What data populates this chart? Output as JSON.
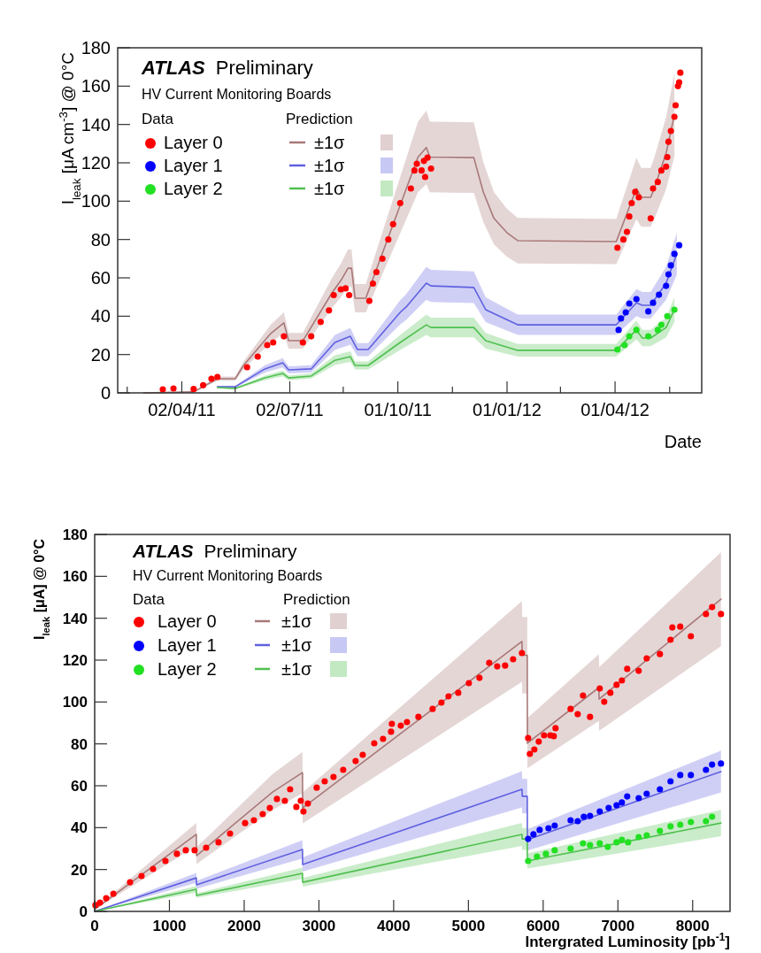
{
  "chart_data": [
    {
      "type": "line",
      "title": "ATLAS",
      "subtitle": "Preliminary",
      "annotations": [
        "HV Current Monitoring Boards",
        "Data",
        "Prediction"
      ],
      "xlabel": "Date",
      "ylabel": "I$_{leak}$ [μA cm$^{-3}$] @ 0°C",
      "legend": "top left",
      "xlim": [
        "2011-02-07",
        "2012-06-13"
      ],
      "xticks": [
        {
          "value": "2011-02-15",
          "label": null
        },
        {
          "value": "2011-04-02",
          "label": "02/04/11"
        },
        {
          "value": "2011-05-17",
          "label": null
        },
        {
          "value": "2011-07-02",
          "label": "02/07/11"
        },
        {
          "value": "2011-08-16",
          "label": null
        },
        {
          "value": "2011-10-01",
          "label": "01/10/11"
        },
        {
          "value": "2011-11-16",
          "label": null
        },
        {
          "value": "2012-01-01",
          "label": "01/01/12"
        },
        {
          "value": "2012-02-15",
          "label": null
        },
        {
          "value": "2012-04-01",
          "label": "01/04/12"
        },
        {
          "value": "2012-05-17",
          "label": null
        }
      ],
      "ylim": [
        0,
        180
      ],
      "yticks": [
        0,
        20,
        40,
        60,
        80,
        100,
        120,
        140,
        160,
        180
      ],
      "series": [
        {
          "name": "Layer 0",
          "type": "scatter",
          "marker": "circle",
          "color": "#ff0000",
          "x": [
            "2011-03-17",
            "2011-03-26",
            "2011-04-12",
            "2011-04-20",
            "2011-04-27",
            "2011-05-02",
            "2011-05-27",
            "2011-06-05",
            "2011-06-13",
            "2011-06-18",
            "2011-06-27",
            "2011-07-13",
            "2011-07-20",
            "2011-07-28",
            "2011-08-04",
            "2011-08-08",
            "2011-08-14",
            "2011-08-18",
            "2011-08-21",
            "2011-09-07",
            "2011-09-10",
            "2011-09-13",
            "2011-09-18",
            "2011-09-23",
            "2011-09-27",
            "2011-10-03",
            "2011-10-12",
            "2011-10-15",
            "2011-10-17",
            "2011-10-21",
            "2011-10-23",
            "2011-10-24",
            "2011-10-26",
            "2011-10-29",
            "2012-04-03",
            "2012-04-08",
            "2012-04-11",
            "2012-04-13",
            "2012-04-15",
            "2012-04-18",
            "2012-04-21",
            "2012-05-01",
            "2012-05-03",
            "2012-05-07",
            "2012-05-10",
            "2012-05-14",
            "2012-05-15",
            "2012-05-16",
            "2012-05-18",
            "2012-05-21",
            "2012-05-22",
            "2012-05-24",
            "2012-05-25",
            "2012-05-26"
          ],
          "values": [
            1.8,
            2.3,
            2,
            4,
            7.4,
            8.3,
            13.4,
            18.9,
            24.9,
            26.3,
            29.5,
            26.3,
            29.5,
            37,
            43,
            51,
            54,
            54.5,
            51,
            48,
            57,
            63,
            70,
            80,
            88,
            99,
            106.6,
            116,
            119.5,
            116,
            121,
            112.6,
            122.7,
            117,
            75.7,
            80,
            84,
            92,
            99,
            104.8,
            102,
            91,
            106.6,
            110,
            116,
            118,
            123,
            131,
            136.6,
            144,
            150,
            160,
            162,
            167
          ]
        },
        {
          "name": "±1σ",
          "color": "#a87878",
          "x": [
            "2011-03-01",
            "2011-04-12",
            "2011-05-02",
            "2011-05-17",
            "2011-05-24",
            "2011-06-16",
            "2011-06-27",
            "2011-07-01",
            "2011-07-13",
            "2011-08-07",
            "2011-08-14",
            "2011-08-20",
            "2011-08-23",
            "2011-08-26",
            "2011-09-04",
            "2011-10-18",
            "2011-10-25",
            "2011-10-28",
            "2011-12-04",
            "2011-12-12",
            "2011-12-21",
            "2012-01-01",
            "2012-01-10",
            "2012-04-02",
            "2012-04-19",
            "2012-04-23",
            "2012-05-01",
            "2012-05-04",
            "2012-05-14",
            "2012-05-21"
          ],
          "values": [
            0,
            0.5,
            7.4,
            7.4,
            14.3,
            31,
            36.5,
            27.2,
            27.2,
            52.6,
            58.6,
            65,
            65,
            49.4,
            49.4,
            123,
            128,
            123,
            122.7,
            104.8,
            91,
            83.5,
            79.4,
            78.9,
            106.6,
            102,
            102,
            106.6,
            125,
            145
          ],
          "lower": [
            0,
            0.4,
            6.3,
            6.3,
            12.2,
            26.4,
            31,
            23.1,
            23.1,
            44.7,
            49.8,
            55.3,
            55.3,
            42,
            42,
            104.6,
            108.8,
            104.6,
            104.3,
            89.1,
            77.4,
            71,
            67.5,
            67.1,
            90.6,
            86.7,
            86.7,
            90.6,
            106.3,
            123.3
          ],
          "upper": [
            0,
            0.6,
            8.5,
            8.5,
            16.4,
            35.7,
            42,
            31.3,
            31.3,
            60.5,
            67.4,
            74.8,
            74.8,
            56.8,
            56.8,
            141.5,
            147.2,
            141.5,
            141.1,
            120.5,
            104.7,
            96,
            91.3,
            90.7,
            122.6,
            117.3,
            117.3,
            122.6,
            143.8,
            166.8
          ]
        },
        {
          "name": "Layer 1",
          "type": "scatter",
          "marker": "circle",
          "color": "#0000ff",
          "x": [
            "2012-04-04",
            "2012-04-06",
            "2012-04-10",
            "2012-04-13",
            "2012-04-19",
            "2012-04-29",
            "2012-05-03",
            "2012-05-08",
            "2012-05-14",
            "2012-05-16",
            "2012-05-18",
            "2012-05-21",
            "2012-05-25"
          ],
          "values": [
            32.8,
            38.8,
            42,
            46.6,
            48.9,
            42.5,
            47,
            51.2,
            55.8,
            61.8,
            66.5,
            72.5,
            77
          ]
        },
        {
          "name": "±1σ",
          "color": "#6060e0",
          "x": [
            "2011-05-02",
            "2011-05-17",
            "2011-06-11",
            "2011-06-26",
            "2011-07-01",
            "2011-07-20",
            "2011-08-09",
            "2011-08-22",
            "2011-08-28",
            "2011-09-06",
            "2011-10-03",
            "2011-10-08",
            "2011-10-25",
            "2011-10-29",
            "2011-12-04",
            "2011-12-14",
            "2012-01-10",
            "2012-04-02",
            "2012-04-19",
            "2012-04-24",
            "2012-05-01",
            "2012-05-14",
            "2012-05-23"
          ],
          "values": [
            3.2,
            3.2,
            12.5,
            15.7,
            12,
            12.5,
            26.3,
            29.5,
            22.6,
            22.6,
            42,
            44.8,
            57.2,
            55.8,
            55,
            43.4,
            35.5,
            35.5,
            47,
            45.7,
            45.7,
            57.2,
            72.5
          ],
          "lower": [
            2.7,
            2.7,
            10.6,
            13.3,
            10.2,
            10.6,
            22.4,
            25.1,
            19.2,
            19.2,
            35.7,
            38.1,
            48.6,
            47.4,
            46.8,
            36.9,
            30.2,
            30.2,
            40,
            38.8,
            38.8,
            48.6,
            61.6
          ],
          "upper": [
            3.7,
            3.7,
            14.4,
            18.1,
            13.8,
            14.4,
            30.2,
            33.9,
            26,
            26,
            48.3,
            51.5,
            65.8,
            64.2,
            63.3,
            49.9,
            40.8,
            40.8,
            54.1,
            52.6,
            52.6,
            65.8,
            83.4
          ]
        },
        {
          "name": "Layer 2",
          "type": "scatter",
          "marker": "circle",
          "color": "#22e022",
          "x": [
            "2012-04-03",
            "2012-04-09",
            "2012-04-13",
            "2012-04-19",
            "2012-04-29",
            "2012-05-07",
            "2012-05-10",
            "2012-05-15",
            "2012-05-21"
          ],
          "values": [
            22.6,
            24.9,
            29.5,
            32.8,
            29.5,
            32.8,
            35.5,
            40,
            43.4
          ]
        },
        {
          "name": "±1σ",
          "color": "#50c050",
          "x": [
            "2011-05-02",
            "2011-05-17",
            "2011-06-11",
            "2011-06-26",
            "2011-07-01",
            "2011-07-20",
            "2011-08-09",
            "2011-08-22",
            "2011-08-26",
            "2011-09-06",
            "2011-10-03",
            "2011-10-25",
            "2011-10-29",
            "2011-12-04",
            "2011-12-14",
            "2012-01-10",
            "2012-04-02",
            "2012-04-19",
            "2012-04-24",
            "2012-05-01",
            "2012-05-14",
            "2012-05-21"
          ],
          "values": [
            2.8,
            2.3,
            7.8,
            10.2,
            7.8,
            8.8,
            17,
            18.9,
            14.3,
            14.3,
            26.3,
            35.5,
            34.1,
            34.1,
            27.2,
            22.2,
            22.2,
            32.8,
            28.6,
            28.6,
            34.1,
            43.4
          ],
          "lower": [
            2.4,
            2,
            6.6,
            8.7,
            6.6,
            7.5,
            14.5,
            16.1,
            12.2,
            12.2,
            22.4,
            30.2,
            29,
            29,
            23.1,
            18.9,
            18.9,
            27.9,
            24.3,
            24.3,
            29,
            36.9
          ],
          "upper": [
            3.2,
            2.6,
            9,
            11.7,
            9,
            10.1,
            19.6,
            21.7,
            16.4,
            16.4,
            30.2,
            40.8,
            39.2,
            39.2,
            31.3,
            25.5,
            25.5,
            37.7,
            32.9,
            32.9,
            39.2,
            49.9
          ]
        }
      ]
    },
    {
      "type": "line",
      "title": "ATLAS",
      "subtitle": "Preliminary",
      "annotations": [
        "HV Current Monitoring Boards",
        "Data",
        "Prediction"
      ],
      "xlabel": "Intergrated Luminosity [pb$^{-1}$]",
      "ylabel": "I$_{leak}$ [μA] @ 0°C",
      "legend": "top left",
      "xlim": [
        0,
        8500
      ],
      "xticks": [
        0,
        1000,
        2000,
        3000,
        4000,
        5000,
        6000,
        7000,
        8000
      ],
      "ylim": [
        0,
        180
      ],
      "yticks": [
        0,
        20,
        40,
        60,
        80,
        100,
        120,
        140,
        160,
        180
      ],
      "series": [
        {
          "name": "Layer 0",
          "type": "scatter",
          "marker": "circle",
          "color": "#ff0000",
          "x": [
            10,
            71,
            154,
            250,
            473,
            627,
            781,
            947,
            1100,
            1219,
            1337,
            1491,
            1657,
            1811,
            2012,
            2130,
            2248,
            2343,
            2438,
            2544,
            2615,
            2698,
            2757,
            2793,
            2852,
            2970,
            3077,
            3195,
            3325,
            3491,
            3586,
            3740,
            3858,
            3965,
            3976,
            4095,
            4178,
            4331,
            4521,
            4639,
            4734,
            4864,
            5006,
            5148,
            5278,
            5385,
            5491,
            5598,
            5716,
            5799,
            5822,
            5882,
            5941,
            6012,
            6095,
            6142,
            6166,
            6367,
            6462,
            6533,
            6627,
            6757,
            6817,
            6899,
            6982,
            7053,
            7124,
            7278,
            7385,
            7562,
            7704,
            7728,
            7834,
            7976,
            8178,
            8260,
            8379
          ],
          "values": [
            3,
            4.2,
            6.3,
            8.4,
            13.9,
            16.9,
            20.3,
            24.1,
            27.5,
            29.2,
            29.2,
            30.4,
            33,
            37.2,
            42.2,
            43.5,
            46.5,
            49.4,
            53.7,
            52.8,
            58.3,
            49.9,
            52.8,
            47.7,
            51.5,
            59.1,
            62.1,
            64.2,
            67.6,
            71.8,
            74.8,
            80.3,
            82.4,
            85.8,
            89.6,
            88.7,
            90.4,
            92.9,
            96.7,
            99.7,
            102.7,
            104.4,
            109,
            111.5,
            118.7,
            117,
            117.4,
            120.4,
            123.4,
            82.8,
            75.2,
            77.3,
            81.1,
            84.1,
            84.1,
            83.7,
            87.5,
            96.7,
            94.2,
            103.1,
            92.9,
            106.5,
            100.1,
            104.4,
            108.2,
            110.3,
            115.8,
            114.9,
            120.8,
            122.9,
            129.7,
            135.6,
            136,
            131.4,
            142,
            145.3,
            142
          ]
        },
        {
          "name": "±1σ",
          "color": "#a87878",
          "x": [
            0,
            1360,
            1362,
            2380,
            2780,
            2782,
            5716,
            5720,
            5787,
            5789,
            6746,
            6748,
            8379
          ],
          "values": [
            1,
            36.8,
            26.6,
            57,
            66.3,
            49.4,
            128.9,
            122.3,
            122.3,
            80.3,
            106.9,
            101.4,
            149.1
          ],
          "lower": [
            0.9,
            31.3,
            22.6,
            48.5,
            56.4,
            42,
            109.6,
            104,
            104,
            68.3,
            90.9,
            86.2,
            126.7
          ],
          "upper": [
            1.2,
            42.3,
            30.6,
            65.6,
            76.2,
            56.8,
            148.2,
            140.6,
            140.6,
            92.3,
            122.9,
            116.6,
            171.5
          ]
        },
        {
          "name": "Layer 1",
          "type": "scatter",
          "marker": "circle",
          "color": "#0000ff",
          "x": [
            5799,
            5870,
            5953,
            6071,
            6154,
            6367,
            6462,
            6544,
            6627,
            6757,
            6876,
            6982,
            7053,
            7124,
            7278,
            7385,
            7562,
            7704,
            7834,
            7976,
            8178,
            8260,
            8379
          ],
          "values": [
            34.6,
            36.8,
            38.9,
            39.7,
            41,
            43.5,
            43.1,
            45.2,
            45.6,
            47.7,
            49.4,
            50.7,
            52,
            54.9,
            54.1,
            56.2,
            58.3,
            62.1,
            65.1,
            65.1,
            67.6,
            70.1,
            70.6
          ]
        },
        {
          "name": "±1σ",
          "color": "#6060e0",
          "x": [
            0,
            1360,
            1362,
            2780,
            2782,
            5716,
            5720,
            5787,
            5789,
            8379
          ],
          "values": [
            0,
            16,
            12.7,
            29.6,
            22.4,
            58.3,
            55,
            55,
            34.2,
            66.8
          ],
          "lower": [
            0,
            13.6,
            10.8,
            25.2,
            19,
            49.6,
            46.8,
            46.8,
            29.1,
            56.8
          ],
          "upper": [
            0,
            18.4,
            14.6,
            34,
            25.8,
            67,
            63.3,
            63.3,
            39.3,
            76.8
          ]
        },
        {
          "name": "Layer 2",
          "type": "scatter",
          "marker": "circle",
          "color": "#22e022",
          "x": [
            5799,
            5917,
            6036,
            6154,
            6367,
            6533,
            6627,
            6757,
            6864,
            6982,
            7053,
            7136,
            7278,
            7385,
            7562,
            7704,
            7834,
            7976,
            8178,
            8260
          ],
          "values": [
            24.1,
            26.2,
            27.5,
            29.2,
            30,
            32.5,
            31.7,
            32.5,
            30.8,
            33,
            34.2,
            33,
            35.5,
            36.3,
            38.4,
            40.6,
            41.4,
            42.7,
            43.1,
            45.2
          ]
        },
        {
          "name": "±1σ",
          "color": "#50c050",
          "x": [
            0,
            1360,
            1362,
            2780,
            2782,
            5716,
            5720,
            5787,
            5789,
            8379
          ],
          "values": [
            0,
            10.6,
            7.6,
            18.2,
            13.9,
            36.8,
            34.6,
            34.6,
            24.1,
            42.2
          ],
          "lower": [
            0,
            9,
            6.5,
            15.5,
            11.8,
            31.3,
            29.4,
            29.4,
            20.5,
            35.9
          ],
          "upper": [
            0,
            12.2,
            8.7,
            20.9,
            16,
            42.3,
            39.8,
            39.8,
            27.7,
            48.5
          ]
        }
      ]
    }
  ]
}
